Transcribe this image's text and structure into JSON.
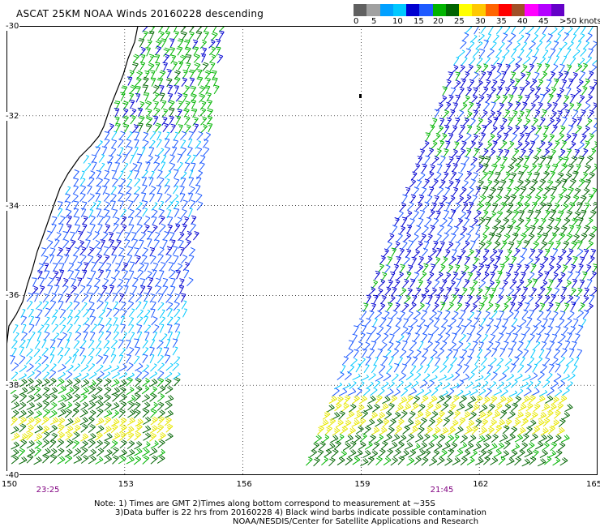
{
  "title": "ASCAT 25KM NOAA Winds 20160228 descending",
  "legend": {
    "colors": [
      "#606060",
      "#a0a0a0",
      "#00a0ff",
      "#00c8ff",
      "#0000d0",
      "#1e5aff",
      "#00b400",
      "#006400",
      "#ffff00",
      "#ffc800",
      "#ff6400",
      "#ff0000",
      "#a05028",
      "#ff00ff",
      "#b400ff",
      "#6400c8"
    ],
    "labels": [
      "0",
      "5",
      "10",
      "15",
      "20",
      "25",
      "30",
      "35",
      "40",
      "45",
      ">50 knots"
    ],
    "units": "knots"
  },
  "axes": {
    "lat_labels": [
      "-30",
      "-32",
      "-34",
      "-36",
      "-38",
      "-40"
    ],
    "lon_labels": [
      "150",
      "153",
      "156",
      "159",
      "162",
      "165"
    ],
    "lat_range": [
      -40,
      -30
    ],
    "lon_range": [
      150,
      165
    ]
  },
  "passes": [
    {
      "time": "23:25",
      "lon": 151
    },
    {
      "time": "21:45",
      "lon": 161
    }
  ],
  "notes": {
    "line1": "Note: 1) Times are GMT 2)Times along bottom correspond to measurement at ~35S",
    "line2": "3)Data buffer is 22 hrs from 20160228 4) Black wind barbs indicate possible contamination",
    "line3": "NOAA/NESDIS/Center for Satellite Applications and Research"
  }
}
